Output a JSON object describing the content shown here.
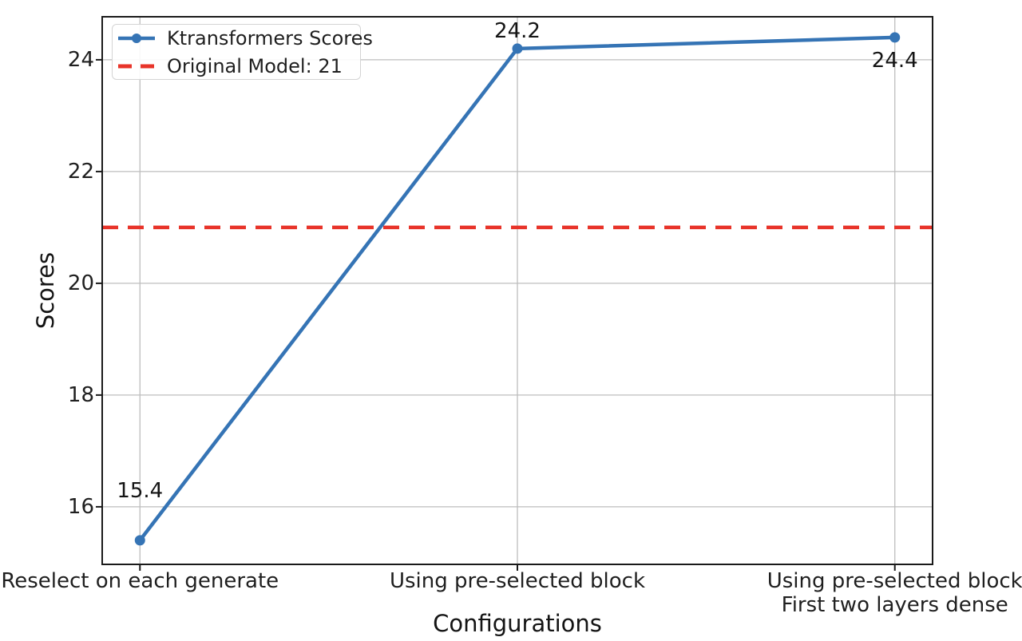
{
  "chart_data": {
    "type": "line",
    "title": "",
    "xlabel": "Configurations",
    "ylabel": "Scores",
    "categories": [
      "Reselect on each generate",
      "Using pre-selected block",
      "Using pre-selected block\nFirst two layers dense"
    ],
    "series": [
      {
        "name": "Ktransformers Scores",
        "values": [
          15.4,
          24.2,
          24.4
        ],
        "color": "#3574b5",
        "marker": "circle",
        "line_style": "solid"
      }
    ],
    "reference_line": {
      "label": "Original Model: 21",
      "value": 21,
      "color": "#e8342a",
      "line_style": "dashed"
    },
    "point_labels": [
      "15.4",
      "24.2",
      "24.4"
    ],
    "point_label_side": [
      "above",
      "above",
      "below"
    ],
    "yticks": [
      16,
      18,
      20,
      22,
      24
    ],
    "ylim": [
      14.97,
      24.77
    ],
    "xlim": [
      -0.1,
      2.1
    ],
    "grid": true,
    "legend_position": "upper left",
    "legend_entries": [
      "Ktransformers Scores",
      "Original Model: 21"
    ]
  },
  "colors": {
    "series": "#3574b5",
    "reference": "#e8342a",
    "grid": "#bdbdbd",
    "spine": "#1a1a1a",
    "text": "#1f1f1f",
    "background": "#ffffff"
  }
}
